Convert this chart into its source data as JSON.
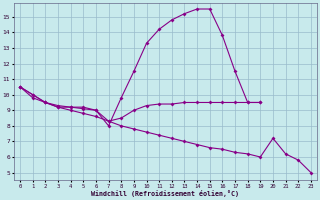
{
  "bg_color": "#c8eaec",
  "line_color": "#880088",
  "grid_color": "#99bbcc",
  "xlabel": "Windchill (Refroidissement éolien,°C)",
  "x_ticks": [
    0,
    1,
    2,
    3,
    4,
    5,
    6,
    7,
    8,
    9,
    10,
    11,
    12,
    13,
    14,
    15,
    16,
    17,
    18,
    19,
    20,
    21,
    22,
    23
  ],
  "y_ticks": [
    5,
    6,
    7,
    8,
    9,
    10,
    11,
    12,
    13,
    14,
    15
  ],
  "ylim": [
    4.5,
    15.9
  ],
  "xlim": [
    -0.5,
    23.5
  ],
  "series": [
    {
      "x": [
        0,
        1,
        2,
        3,
        4,
        5,
        6,
        7,
        8,
        9,
        10,
        11,
        12,
        13,
        14,
        15,
        16,
        17,
        18,
        19
      ],
      "y": [
        10.5,
        10.0,
        9.5,
        9.2,
        9.2,
        9.2,
        9.0,
        8.0,
        9.8,
        11.5,
        13.3,
        14.2,
        14.8,
        15.2,
        15.5,
        15.5,
        13.8,
        11.5,
        9.5,
        9.5
      ]
    },
    {
      "x": [
        0,
        1,
        2,
        3,
        4,
        5,
        6,
        7,
        8,
        9,
        10,
        11,
        12,
        13,
        14,
        15,
        16,
        17,
        18,
        19
      ],
      "y": [
        10.5,
        9.8,
        9.5,
        9.3,
        9.2,
        9.1,
        9.0,
        8.3,
        8.5,
        9.0,
        9.3,
        9.4,
        9.4,
        9.5,
        9.5,
        9.5,
        9.5,
        9.5,
        9.5,
        9.5
      ]
    },
    {
      "x": [
        0,
        1,
        2,
        3,
        4,
        5,
        6,
        7,
        8,
        9,
        10,
        11,
        12,
        13,
        14,
        15,
        16,
        17,
        18,
        19,
        20,
        21,
        22,
        23
      ],
      "y": [
        10.5,
        10.0,
        9.5,
        9.2,
        9.0,
        8.8,
        8.6,
        8.3,
        8.0,
        7.8,
        7.6,
        7.4,
        7.2,
        7.0,
        6.8,
        6.6,
        6.5,
        6.3,
        6.2,
        6.0,
        7.2,
        6.2,
        5.8,
        5.0
      ]
    }
  ]
}
